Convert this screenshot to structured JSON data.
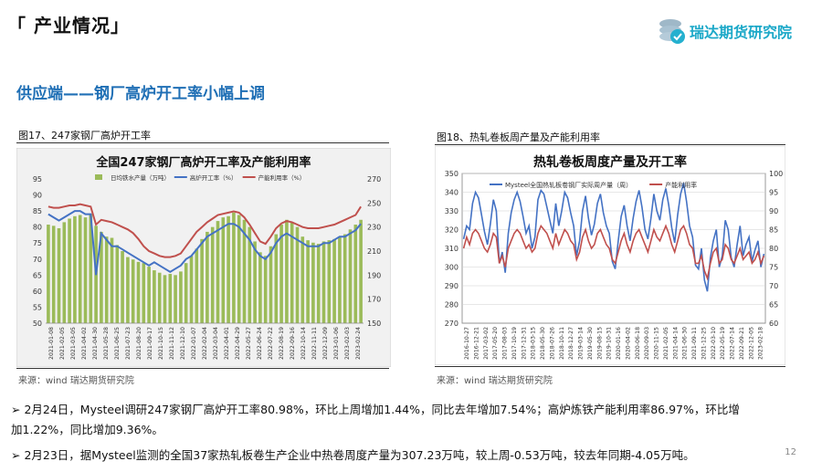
{
  "section_title": "「 产业情况」",
  "logo_text": "瑞达期货研究院",
  "headline": "供应端——钢厂高炉开工率小幅上调",
  "fig1": {
    "caption": "图17、247家钢厂高炉开工率",
    "source": "来源：wind   瑞达期货研究院"
  },
  "fig2": {
    "caption": "图18、热轧卷板周产量及产能利用率",
    "source": "来源：wind   瑞达期货研究院"
  },
  "bullets": [
    "➢  2月24日，Mysteel调研247家钢厂高炉开工率80.98%，环比上周增加1.44%，同比去年增加7.54%；高炉炼铁产能利用率86.97%，环比增",
    "    加1.22%，同比增加9.36%。",
    "➢  2月23日，据Mysteel监测的全国37家热轧板卷生产企业中热卷周度产量为307.23万吨，较上周-0.53万吨，较去年同期-4.05万吨。"
  ],
  "page_number": "12",
  "colors": {
    "accent": "#1f6fb5",
    "chart_bg": "#f1f1f1",
    "blue": "#4472c4",
    "red": "#c0504d",
    "green": "#9bbb59"
  },
  "chart_data": [
    {
      "type": "bar+line",
      "title": "全国247家钢厂高炉开工率及产能利用率",
      "legend": [
        "日均铁水产量（万吨）",
        "高炉开工率（%）",
        "产能利用率（%）"
      ],
      "y_left": {
        "min": 50,
        "max": 95,
        "ticks": [
          "50",
          "55",
          "60",
          "65",
          "70",
          "75",
          "80",
          "85",
          "90",
          "95"
        ]
      },
      "y_right": {
        "min": 150,
        "max": 270,
        "ticks": [
          "150",
          "170",
          "190",
          "210",
          "230",
          "250",
          "270"
        ]
      },
      "x_ticks": [
        "2021-01-08",
        "2021-02-05",
        "2021-03-05",
        "2021-04-02",
        "2021-04-30",
        "2021-05-28",
        "2021-06-25",
        "2021-07-23",
        "2021-08-20",
        "2021-09-17",
        "2021-10-15",
        "2021-11-12",
        "2021-12-10",
        "2022-01-07",
        "2022-02-04",
        "2022-03-04",
        "2022-04-01",
        "2022-04-29",
        "2022-05-27",
        "2022-06-24",
        "2022-07-22",
        "2022-08-19",
        "2022-09-16",
        "2022-10-14",
        "2022-11-11",
        "2022-12-09",
        "2023-01-06",
        "2023-02-03",
        "2023-02-24"
      ],
      "series": [
        {
          "name": "日均铁水产量（万吨）",
          "axis": "right",
          "kind": "bar",
          "values": [
            232,
            231,
            229,
            234,
            237,
            239,
            240,
            238,
            241,
            231,
            226,
            222,
            221,
            215,
            210,
            205,
            203,
            201,
            200,
            197,
            194,
            192,
            190,
            191,
            190,
            193,
            200,
            206,
            212,
            220,
            226,
            230,
            235,
            238,
            239,
            242,
            240,
            236,
            230,
            218,
            209,
            206,
            214,
            224,
            232,
            236,
            234,
            230,
            222,
            219,
            217,
            216,
            218,
            219,
            220,
            222,
            224,
            228,
            232,
            236
          ]
        },
        {
          "name": "高炉开工率（%）",
          "axis": "left",
          "kind": "line",
          "values": [
            84,
            83,
            82,
            83,
            84,
            85,
            85,
            84,
            84,
            65,
            78,
            76,
            74,
            74,
            73,
            72,
            71,
            70,
            69,
            68,
            69,
            68,
            67,
            66,
            67,
            68,
            70,
            71,
            73,
            75,
            77,
            78,
            79,
            80,
            81,
            81,
            80,
            78,
            76,
            73,
            71,
            70,
            72,
            75,
            77,
            78,
            77,
            76,
            75,
            74,
            74,
            74,
            75,
            75,
            76,
            77,
            77,
            78,
            79,
            81
          ]
        },
        {
          "name": "产能利用率（%）",
          "axis": "right",
          "kind": "line",
          "values": [
            247,
            246,
            246,
            247,
            248,
            248,
            249,
            248,
            247,
            232,
            236,
            235,
            234,
            232,
            230,
            228,
            225,
            220,
            214,
            210,
            208,
            206,
            205,
            205,
            206,
            208,
            214,
            220,
            226,
            230,
            234,
            237,
            240,
            241,
            242,
            243,
            242,
            238,
            232,
            225,
            218,
            216,
            222,
            229,
            233,
            235,
            234,
            232,
            230,
            229,
            229,
            229,
            230,
            231,
            232,
            234,
            236,
            238,
            240,
            247
          ]
        }
      ]
    },
    {
      "type": "line",
      "title": "热轧卷板周度产量及开工率",
      "legend": [
        "Mysteel全国热轧板卷钢厂实际周产量（周）",
        "产能利用率"
      ],
      "y_left": {
        "min": 270,
        "max": 350,
        "ticks": [
          "270",
          "280",
          "290",
          "300",
          "310",
          "320",
          "330",
          "340",
          "350"
        ]
      },
      "y_right": {
        "min": 60,
        "max": 100,
        "ticks": [
          "60",
          "65",
          "70",
          "75",
          "80",
          "85",
          "90",
          "95",
          "100"
        ]
      },
      "x_ticks": [
        "2016-10-27",
        "2016-12-21",
        "2017-03-02",
        "2017-05-20",
        "2017-08-03",
        "2017-10-19",
        "2017-12-31",
        "2018-03-15",
        "2018-05-30",
        "2018-07-26",
        "2018-10-11",
        "2018-12-27",
        "2019-03-14",
        "2019-05-30",
        "2019-08-15",
        "2019-10-31",
        "2020-01-16",
        "2020-04-02",
        "2020-06-18",
        "2020-09-03",
        "2020-11-15",
        "2021-02-05",
        "2021-04-14",
        "2021-06-30",
        "2021-09-11",
        "2021-12-25",
        "2022-03-10",
        "2022-05-19",
        "2022-07-14",
        "2022-09-21",
        "2022-12-05",
        "2023-02-18"
      ],
      "series": [
        {
          "name": "Mysteel全国热轧板卷钢厂实际周产量（周）",
          "axis": "left",
          "values": [
            315,
            322,
            320,
            334,
            340,
            337,
            328,
            319,
            312,
            323,
            336,
            330,
            302,
            308,
            297,
            318,
            329,
            336,
            340,
            335,
            327,
            318,
            322,
            310,
            316,
            336,
            341,
            339,
            332,
            325,
            318,
            334,
            322,
            330,
            340,
            337,
            329,
            322,
            306,
            314,
            330,
            338,
            326,
            317,
            323,
            334,
            339,
            329,
            322,
            318,
            303,
            299,
            314,
            327,
            333,
            322,
            314,
            326,
            335,
            341,
            332,
            320,
            315,
            326,
            339,
            330,
            325,
            336,
            342,
            333,
            321,
            313,
            328,
            339,
            345,
            335,
            322,
            316,
            301,
            299,
            310,
            293,
            287,
            305,
            314,
            320,
            300,
            306,
            325,
            320,
            305,
            300,
            312,
            322,
            306,
            312,
            316,
            303,
            309,
            314,
            300,
            307
          ]
        },
        {
          "name": "产能利用率",
          "axis": "right",
          "values": [
            80,
            83,
            81,
            84,
            85,
            84,
            82,
            80,
            79,
            81,
            84,
            83,
            76,
            78,
            75,
            80,
            82,
            84,
            85,
            84,
            82,
            80,
            81,
            79,
            80,
            84,
            86,
            85,
            84,
            82,
            80,
            84,
            81,
            83,
            85,
            84,
            82,
            81,
            77,
            79,
            83,
            85,
            82,
            80,
            81,
            84,
            85,
            83,
            81,
            80,
            77,
            76,
            79,
            82,
            84,
            81,
            79,
            82,
            84,
            85,
            83,
            81,
            79,
            82,
            85,
            83,
            82,
            84,
            86,
            84,
            81,
            79,
            82,
            85,
            86,
            84,
            81,
            80,
            76,
            76,
            78,
            74,
            72,
            76,
            79,
            80,
            76,
            77,
            81,
            80,
            77,
            76,
            78,
            80,
            77,
            78,
            79,
            76,
            77,
            79,
            76,
            78
          ]
        }
      ]
    }
  ]
}
